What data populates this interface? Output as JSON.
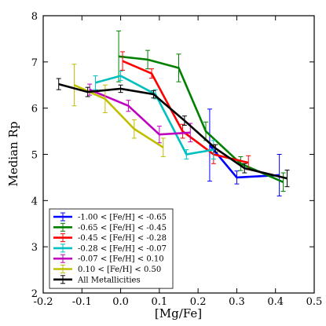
{
  "chart_data": {
    "type": "line",
    "xlabel": "[Mg/Fe]",
    "ylabel": "Median Rp",
    "xlim": [
      -0.2,
      0.5
    ],
    "ylim": [
      2,
      8
    ],
    "xticks": [
      -0.2,
      -0.1,
      0.0,
      0.1,
      0.2,
      0.3,
      0.4,
      0.5
    ],
    "xtick_labels": [
      "-0.2",
      "-0.1",
      "0.0",
      "0.1",
      "0.2",
      "0.3",
      "0.4",
      "0.5"
    ],
    "yticks": [
      2,
      3,
      4,
      5,
      6,
      7,
      8
    ],
    "ytick_labels": [
      "2",
      "3",
      "4",
      "5",
      "6",
      "7",
      "8"
    ],
    "grid": false,
    "legend_position": "lower-left",
    "series": [
      {
        "name": "-1.00 < [Fe/H] < -0.65",
        "color": "#0000ff",
        "points": [
          [
            0.23,
            5.2,
            0.78
          ],
          [
            0.3,
            4.5,
            0.14
          ],
          [
            0.41,
            4.55,
            0.45
          ]
        ]
      },
      {
        "name": "-0.65 < [Fe/H] < -0.45",
        "color": "#008000",
        "points": [
          [
            -0.005,
            7.12,
            0.55
          ],
          [
            0.07,
            7.05,
            0.2
          ],
          [
            0.15,
            6.87,
            0.3
          ],
          [
            0.22,
            5.5,
            0.2
          ],
          [
            0.31,
            4.8,
            0.15
          ],
          [
            0.42,
            4.4,
            0.2
          ]
        ]
      },
      {
        "name": "-0.45 < [Fe/H] < -0.28",
        "color": "#ff0000",
        "points": [
          [
            0.005,
            7.02,
            0.2
          ],
          [
            0.08,
            6.75,
            0.1
          ],
          [
            0.16,
            5.5,
            0.15
          ],
          [
            0.24,
            5.0,
            0.2
          ],
          [
            0.33,
            4.82,
            0.15
          ]
        ]
      },
      {
        "name": "-0.28 < [Fe/H] < -0.07",
        "color": "#00bfbf",
        "points": [
          [
            -0.065,
            6.55,
            0.15
          ],
          [
            0.0,
            6.7,
            0.1
          ],
          [
            0.09,
            6.3,
            0.1
          ],
          [
            0.17,
            5.0,
            0.1
          ],
          [
            0.24,
            5.1,
            0.2
          ]
        ]
      },
      {
        "name": "-0.07 < [Fe/H] < 0.10",
        "color": "#bf00bf",
        "points": [
          [
            -0.08,
            6.4,
            0.12
          ],
          [
            0.02,
            6.05,
            0.12
          ],
          [
            0.1,
            5.43,
            0.18
          ],
          [
            0.18,
            5.47,
            0.2
          ]
        ]
      },
      {
        "name": "0.10 < [Fe/H] < 0.50",
        "color": "#bfbf00",
        "points": [
          [
            -0.12,
            6.5,
            0.45
          ],
          [
            -0.04,
            6.2,
            0.3
          ],
          [
            0.035,
            5.55,
            0.2
          ],
          [
            0.11,
            5.15,
            0.2
          ]
        ]
      },
      {
        "name": "All Metallicities",
        "color": "#000000",
        "points": [
          [
            -0.16,
            6.52,
            0.12
          ],
          [
            -0.085,
            6.35,
            0.1
          ],
          [
            0.0,
            6.42,
            0.08
          ],
          [
            0.085,
            6.3,
            0.08
          ],
          [
            0.165,
            5.73,
            0.1
          ],
          [
            0.245,
            5.13,
            0.08
          ],
          [
            0.32,
            4.7,
            0.1
          ],
          [
            0.43,
            4.48,
            0.18
          ]
        ]
      }
    ]
  }
}
